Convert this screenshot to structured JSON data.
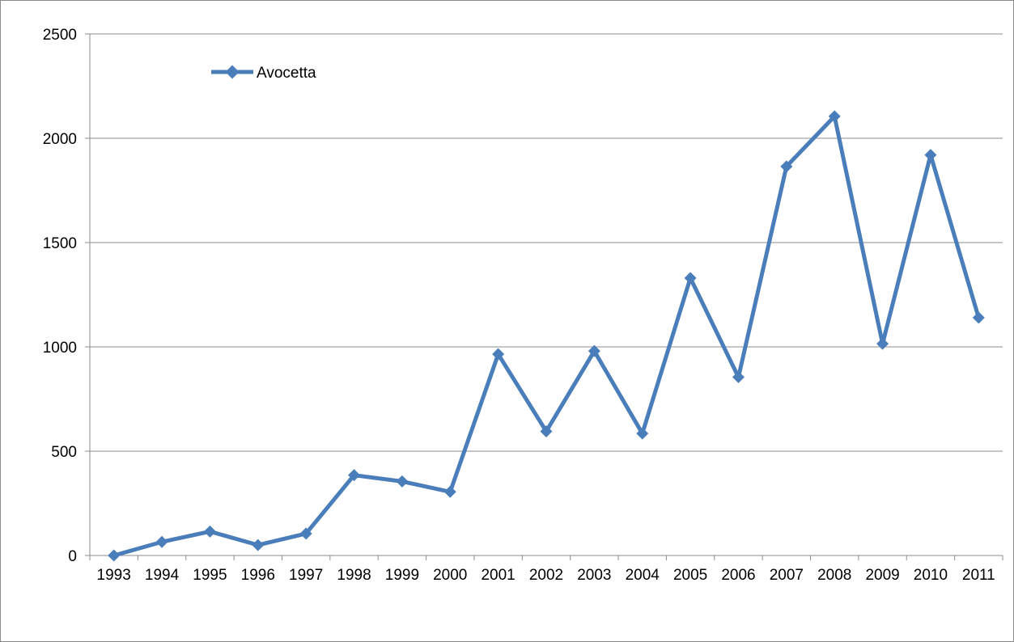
{
  "chart_data": {
    "type": "line",
    "title": "",
    "xlabel": "",
    "ylabel": "",
    "categories": [
      "1993",
      "1994",
      "1995",
      "1996",
      "1997",
      "1998",
      "1999",
      "2000",
      "2001",
      "2002",
      "2003",
      "2004",
      "2005",
      "2006",
      "2007",
      "2008",
      "2009",
      "2010",
      "2011"
    ],
    "series": [
      {
        "name": "Avocetta",
        "values": [
          0,
          65,
          115,
          50,
          105,
          385,
          355,
          305,
          965,
          595,
          980,
          585,
          1330,
          855,
          1865,
          2105,
          1015,
          1920,
          1140
        ]
      }
    ],
    "ylim": [
      0,
      2500
    ],
    "yticks": [
      "0",
      "500",
      "1000",
      "1500",
      "2000",
      "2500"
    ],
    "grid": true,
    "legend_position": "top-left",
    "series_color": "#4a7ebb",
    "gridline_color": "#8c8c8c",
    "axis_color": "#8c8c8c"
  }
}
